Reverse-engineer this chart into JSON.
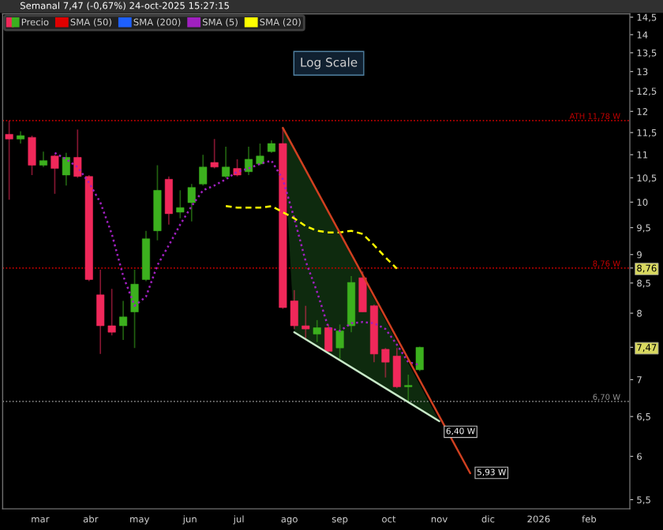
{
  "chart_data": {
    "type": "candlestick",
    "title": "Semanal 7,47 (-0,67%) 24-oct-2025 15:27:15",
    "x": [
      "2025-02-10",
      "2025-02-17",
      "2025-02-24",
      "2025-03-03",
      "2025-03-10",
      "2025-03-17",
      "2025-03-24",
      "2025-03-31",
      "2025-04-07",
      "2025-04-14",
      "2025-04-21",
      "2025-04-28",
      "2025-05-05",
      "2025-05-12",
      "2025-05-19",
      "2025-05-26",
      "2025-06-02",
      "2025-06-09",
      "2025-06-16",
      "2025-06-23",
      "2025-06-30",
      "2025-07-07",
      "2025-07-14",
      "2025-07-21",
      "2025-07-28",
      "2025-08-04",
      "2025-08-11",
      "2025-08-18",
      "2025-08-25",
      "2025-09-01",
      "2025-09-08",
      "2025-09-15",
      "2025-09-22",
      "2025-09-29",
      "2025-10-06",
      "2025-10-13",
      "2025-10-20"
    ],
    "series": [
      {
        "name": "Precio",
        "colors": [
          "#f0285a",
          "#3cb01e",
          "#f0285a",
          "#3cb01e",
          "#f0285a",
          "#3cb01e",
          "#f0285a",
          "#f0285a",
          "#f0285a",
          "#f0285a",
          "#3cb01e",
          "#3cb01e",
          "#3cb01e",
          "#3cb01e",
          "#f0285a",
          "#3cb01e",
          "#3cb01e",
          "#3cb01e",
          "#f0285a",
          "#3cb01e",
          "#f0285a",
          "#3cb01e",
          "#3cb01e",
          "#3cb01e",
          "#f0285a",
          "#f0285a",
          "#f0285a",
          "#3cb01e",
          "#f0285a",
          "#3cb01e",
          "#3cb01e",
          "#f0285a",
          "#f0285a",
          "#f0285a",
          "#f0285a",
          "#3cb01e",
          "#3cb01e"
        ],
        "ohlc": [
          [
            11.46,
            11.78,
            10.05,
            11.35
          ],
          [
            11.35,
            11.53,
            11.25,
            11.43
          ],
          [
            11.39,
            11.43,
            10.56,
            10.77
          ],
          [
            10.77,
            11.07,
            10.73,
            10.87
          ],
          [
            10.97,
            11.0,
            10.17,
            10.7
          ],
          [
            10.56,
            11.04,
            10.34,
            10.94
          ],
          [
            10.94,
            11.57,
            10.5,
            10.53
          ],
          [
            10.53,
            10.56,
            8.53,
            8.56
          ],
          [
            8.3,
            8.73,
            7.37,
            7.8
          ],
          [
            7.8,
            8.4,
            7.65,
            7.7
          ],
          [
            7.8,
            8.2,
            7.58,
            7.94
          ],
          [
            8.02,
            8.73,
            7.46,
            8.48
          ],
          [
            8.56,
            9.44,
            8.53,
            9.29
          ],
          [
            9.44,
            10.77,
            9.26,
            10.24
          ],
          [
            10.47,
            10.53,
            9.56,
            9.77
          ],
          [
            9.8,
            10.24,
            9.68,
            9.89
          ],
          [
            9.99,
            10.37,
            9.62,
            10.3
          ],
          [
            10.37,
            11.0,
            10.34,
            10.73
          ],
          [
            10.83,
            11.35,
            10.7,
            10.73
          ],
          [
            10.53,
            11.18,
            10.5,
            10.73
          ],
          [
            10.7,
            10.9,
            10.53,
            10.56
          ],
          [
            10.63,
            11.18,
            10.56,
            10.9
          ],
          [
            10.8,
            11.25,
            10.77,
            10.97
          ],
          [
            11.07,
            11.32,
            11.04,
            11.25
          ],
          [
            11.25,
            11.61,
            8.07,
            8.09
          ],
          [
            8.2,
            8.38,
            7.75,
            7.8
          ],
          [
            7.8,
            8.12,
            7.58,
            7.75
          ],
          [
            7.67,
            7.89,
            7.55,
            7.77
          ],
          [
            7.77,
            7.82,
            7.41,
            7.41
          ],
          [
            7.46,
            7.82,
            7.3,
            7.72
          ],
          [
            7.8,
            8.62,
            7.7,
            8.51
          ],
          [
            8.59,
            8.7,
            8.02,
            8.02
          ],
          [
            8.12,
            8.14,
            7.25,
            7.37
          ],
          [
            7.44,
            7.46,
            7.03,
            7.25
          ],
          [
            7.34,
            7.46,
            6.88,
            6.9
          ],
          [
            6.9,
            7.07,
            6.68,
            6.92
          ],
          [
            7.14,
            7.48,
            7.12,
            7.47
          ]
        ]
      },
      {
        "name": "SMA (50)",
        "type": "line",
        "color": "#e00000",
        "values": [
          null,
          null,
          null,
          null,
          null,
          null,
          null,
          null,
          null,
          null,
          null,
          null,
          null,
          null,
          null,
          null,
          null,
          null,
          null,
          null,
          null,
          null,
          null,
          null,
          null,
          null,
          null,
          null,
          null,
          null,
          null,
          null,
          null,
          null,
          null,
          null,
          null
        ]
      },
      {
        "name": "SMA (200)",
        "type": "line",
        "color": "#1e60ff",
        "values": [
          null,
          null,
          null,
          null,
          null,
          null,
          null,
          null,
          null,
          null,
          null,
          null,
          null,
          null,
          null,
          null,
          null,
          null,
          null,
          null,
          null,
          null,
          null,
          null,
          null,
          null,
          null,
          null,
          null,
          null,
          null,
          null,
          null,
          null,
          null,
          null,
          null
        ]
      },
      {
        "name": "SMA (5)",
        "type": "line",
        "color": "#a020c0",
        "line_style": "dotted",
        "x": [
          "2025-03-10",
          "2025-03-17",
          "2025-03-24",
          "2025-03-31",
          "2025-04-07",
          "2025-04-14",
          "2025-04-21",
          "2025-04-28",
          "2025-05-05",
          "2025-05-12",
          "2025-05-19",
          "2025-05-26",
          "2025-06-02",
          "2025-06-09",
          "2025-06-16",
          "2025-06-23",
          "2025-06-30",
          "2025-07-07",
          "2025-07-14",
          "2025-07-21",
          "2025-07-28",
          "2025-08-04",
          "2025-08-11",
          "2025-08-18",
          "2025-08-25",
          "2025-09-01",
          "2025-09-08",
          "2025-09-15",
          "2025-09-22",
          "2025-09-29",
          "2025-10-06",
          "2025-10-13",
          "2025-10-20"
        ],
        "values": [
          11.04,
          10.9,
          10.73,
          10.4,
          9.99,
          9.38,
          8.62,
          8.12,
          8.27,
          8.81,
          9.17,
          9.56,
          9.92,
          10.24,
          10.34,
          10.47,
          10.63,
          10.7,
          10.8,
          10.87,
          10.47,
          9.68,
          8.88,
          8.35,
          7.77,
          7.72,
          7.84,
          7.86,
          7.84,
          7.75,
          7.51,
          7.25,
          7.21
        ]
      },
      {
        "name": "SMA (20)",
        "type": "line",
        "color": "#ffff00",
        "line_style": "dashed",
        "x": [
          "2025-06-23",
          "2025-06-30",
          "2025-07-07",
          "2025-07-14",
          "2025-07-21",
          "2025-07-28",
          "2025-08-04",
          "2025-08-11",
          "2025-08-18",
          "2025-08-25",
          "2025-09-01",
          "2025-09-08",
          "2025-09-15",
          "2025-09-22",
          "2025-09-29",
          "2025-10-06"
        ],
        "values": [
          9.92,
          9.89,
          9.89,
          9.89,
          9.92,
          9.8,
          9.68,
          9.53,
          9.44,
          9.41,
          9.41,
          9.44,
          9.38,
          9.17,
          8.95,
          8.75
        ]
      },
      {
        "type": "line",
        "color": "#d04020",
        "line_style": "solid",
        "x": [
          "2025-07-28",
          "2025-11-20"
        ],
        "values": [
          11.61,
          5.8
        ]
      },
      {
        "type": "line",
        "color": "#c8e8c8",
        "line_style": "solid",
        "x": [
          "2025-08-04",
          "2025-11-01"
        ],
        "values": [
          7.7,
          6.44
        ]
      }
    ],
    "log": true,
    "ylim": [
      5.4,
      14.6
    ],
    "yticks": [
      {
        "value": 5.5,
        "label": "5,5"
      },
      6,
      {
        "value": 6.5,
        "label": "6,5"
      },
      7,
      {
        "value": 7.47,
        "label": "7,47"
      },
      8,
      {
        "value": 8.76,
        "label": "8,76"
      },
      {
        "value": 8.5,
        "label": "8,5"
      },
      9,
      {
        "value": 9.5,
        "label": "9,5"
      },
      10,
      {
        "value": 10.5,
        "label": "10,5"
      },
      11,
      {
        "value": 11.5,
        "label": "11,5"
      },
      12,
      {
        "value": 12.5,
        "label": "12,5"
      },
      13,
      {
        "value": 13.5,
        "label": "13,5"
      },
      14,
      {
        "value": 14.5,
        "label": "14,5"
      }
    ],
    "xlim": [
      "2025-02-06",
      "2026-02-26"
    ],
    "xticks": [
      {
        "value": "2025-03-01",
        "label": "mar"
      },
      {
        "value": "2025-04-01",
        "label": "abr"
      },
      {
        "value": "2025-05-01",
        "label": "may"
      },
      {
        "value": "2025-06-01",
        "label": "jun"
      },
      {
        "value": "2025-07-01",
        "label": "jul"
      },
      {
        "value": "2025-08-01",
        "label": "ago"
      },
      {
        "value": "2025-09-01",
        "label": "sep"
      },
      {
        "value": "2025-10-01",
        "label": "oct"
      },
      {
        "value": "2025-11-01",
        "label": "nov"
      },
      {
        "value": "2025-12-01",
        "label": "dic"
      },
      {
        "value": "2026-01-01",
        "label": "2026"
      },
      {
        "value": "2026-02-01",
        "label": "feb"
      }
    ],
    "ref_lines": [
      {
        "axis": "y",
        "value": 11.78,
        "label": "ATH 11,78 W",
        "color": "#c00000",
        "line_style": "dotted"
      },
      {
        "axis": "y",
        "value": 8.76,
        "label": "8,76 W",
        "color": "#c00000",
        "line_style": "dotted"
      },
      {
        "axis": "y",
        "value": 6.7,
        "label": "6,70 W",
        "color": "#909090",
        "line_style": "dotted"
      }
    ],
    "annotations": [
      "Log Scale",
      {
        "text": "6,40 W",
        "x": "2025-11-01",
        "y": 6.44
      },
      {
        "text": "5,93 W",
        "x": "2025-11-20",
        "y": 5.93
      }
    ],
    "grid": false,
    "legend": "top left"
  }
}
